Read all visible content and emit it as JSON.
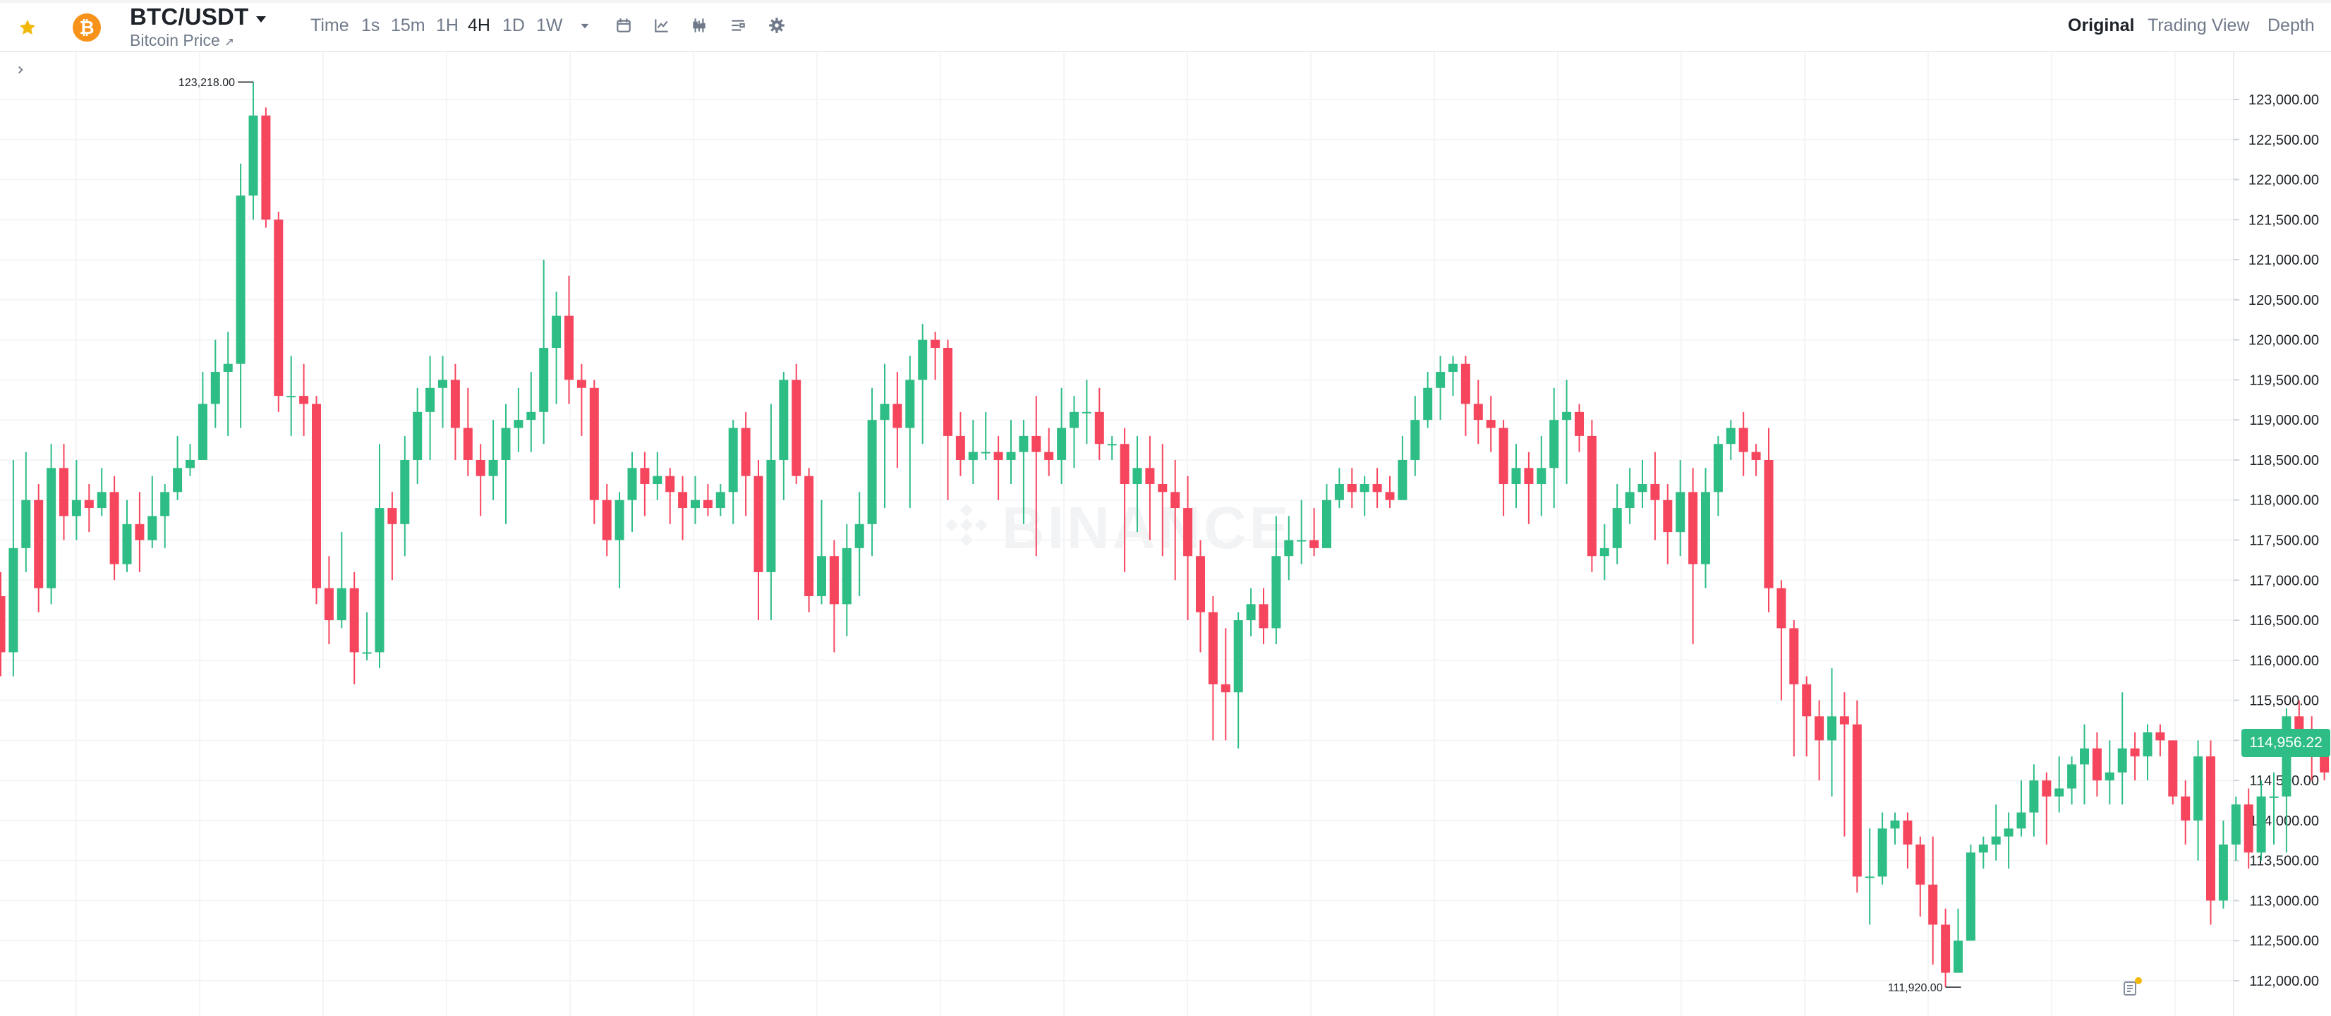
{
  "toolbar": {
    "pair": "BTC/USDT",
    "subtitle": "Bitcoin Price",
    "subtitle_link_icon": "external-link-arrow",
    "timeframes": [
      "Time",
      "1s",
      "15m",
      "1H",
      "4H",
      "1D",
      "1W"
    ],
    "active_timeframe": "4H",
    "tools": [
      "dropdown-caret-icon",
      "calendar-icon",
      "indicator-chart-icon",
      "candle-type-icon",
      "layout-settings-icon",
      "gear-icon"
    ],
    "views": [
      "Original",
      "Trading View",
      "Depth"
    ],
    "active_view": "Original"
  },
  "colors": {
    "up": "#2ebd85",
    "down": "#f6465d",
    "star": "#f0b90b",
    "coin": "#f7931a"
  },
  "watermark": "BINANCE",
  "chart_data": {
    "type": "candlestick",
    "y_ticks": [
      "123,000.00",
      "122,500.00",
      "122,000.00",
      "121,500.00",
      "121,000.00",
      "120,500.00",
      "120,000.00",
      "119,500.00",
      "119,000.00",
      "118,500.00",
      "118,000.00",
      "117,500.00",
      "117,000.00",
      "116,500.00",
      "116,000.00",
      "115,500.00",
      "115,000.00",
      "114,500.00",
      "114,000.00",
      "113,500.00",
      "113,000.00",
      "112,500.00",
      "112,000.00"
    ],
    "ylim": [
      111750,
      123400
    ],
    "current_price": "114,956.22",
    "high_label": "123,218.00",
    "low_label": "111,920.00",
    "candles": [
      [
        116800,
        116100,
        117100,
        115800
      ],
      [
        116100,
        117400,
        118500,
        115800
      ],
      [
        117400,
        118000,
        118600,
        117100
      ],
      [
        118000,
        116900,
        118200,
        116600
      ],
      [
        116900,
        118400,
        118700,
        116700
      ],
      [
        118400,
        117800,
        118700,
        117500
      ],
      [
        117800,
        118000,
        118500,
        117500
      ],
      [
        118000,
        117900,
        118200,
        117600
      ],
      [
        117900,
        118100,
        118400,
        117800
      ],
      [
        118100,
        117200,
        118300,
        117000
      ],
      [
        117200,
        117700,
        118000,
        117100
      ],
      [
        117700,
        117500,
        118100,
        117100
      ],
      [
        117500,
        117800,
        118300,
        117400
      ],
      [
        117800,
        118100,
        118200,
        117400
      ],
      [
        118100,
        118400,
        118800,
        118000
      ],
      [
        118400,
        118500,
        118700,
        118300
      ],
      [
        118500,
        119200,
        119600,
        118500
      ],
      [
        119200,
        119600,
        120000,
        118900
      ],
      [
        119600,
        119700,
        120100,
        118800
      ],
      [
        119700,
        121800,
        122200,
        118900
      ],
      [
        121800,
        122800,
        123218,
        121500
      ],
      [
        122800,
        121500,
        122900,
        121400
      ],
      [
        121500,
        119300,
        121600,
        119100
      ],
      [
        119300,
        119300,
        119800,
        118800
      ],
      [
        119300,
        119200,
        119700,
        118800
      ],
      [
        119200,
        116900,
        119300,
        116700
      ],
      [
        116900,
        116500,
        117300,
        116200
      ],
      [
        116500,
        116900,
        117600,
        116400
      ],
      [
        116900,
        116100,
        117100,
        115700
      ],
      [
        116100,
        116100,
        116600,
        116000
      ],
      [
        116100,
        117900,
        118700,
        115900
      ],
      [
        117900,
        117700,
        118100,
        117000
      ],
      [
        117700,
        118500,
        118800,
        117300
      ],
      [
        118500,
        119100,
        119400,
        118200
      ],
      [
        119100,
        119400,
        119800,
        118500
      ],
      [
        119400,
        119500,
        119800,
        118900
      ],
      [
        119500,
        118900,
        119700,
        118500
      ],
      [
        118900,
        118500,
        119400,
        118300
      ],
      [
        118500,
        118300,
        118700,
        117800
      ],
      [
        118300,
        118500,
        119000,
        118000
      ],
      [
        118500,
        118900,
        119200,
        117700
      ],
      [
        118900,
        119000,
        119400,
        118600
      ],
      [
        119000,
        119100,
        119600,
        118600
      ],
      [
        119100,
        119900,
        121000,
        118700
      ],
      [
        119900,
        120300,
        120600,
        119200
      ],
      [
        120300,
        119500,
        120800,
        119200
      ],
      [
        119500,
        119400,
        119700,
        118800
      ],
      [
        119400,
        118000,
        119500,
        117700
      ],
      [
        118000,
        117500,
        118200,
        117300
      ],
      [
        117500,
        118000,
        118100,
        116900
      ],
      [
        118000,
        118400,
        118600,
        117600
      ],
      [
        118400,
        118200,
        118600,
        117800
      ],
      [
        118200,
        118300,
        118600,
        118000
      ],
      [
        118300,
        118100,
        118400,
        117700
      ],
      [
        118100,
        117900,
        118300,
        117500
      ],
      [
        117900,
        118000,
        118300,
        117700
      ],
      [
        118000,
        117900,
        118200,
        117800
      ],
      [
        117900,
        118100,
        118200,
        117800
      ],
      [
        118100,
        118900,
        119000,
        117700
      ],
      [
        118900,
        118300,
        119100,
        117800
      ],
      [
        118300,
        117100,
        118500,
        116500
      ],
      [
        117100,
        118500,
        119200,
        116500
      ],
      [
        118500,
        119500,
        119600,
        118000
      ],
      [
        119500,
        118300,
        119700,
        118200
      ],
      [
        118300,
        116800,
        118400,
        116600
      ],
      [
        116800,
        117300,
        118000,
        116700
      ],
      [
        117300,
        116700,
        117500,
        116100
      ],
      [
        116700,
        117400,
        117700,
        116300
      ],
      [
        117400,
        117700,
        118100,
        116800
      ],
      [
        117700,
        119000,
        119400,
        117300
      ],
      [
        119000,
        119200,
        119700,
        117900
      ],
      [
        119200,
        118900,
        119600,
        118400
      ],
      [
        118900,
        119500,
        119800,
        117900
      ],
      [
        119500,
        120000,
        120200,
        118700
      ],
      [
        120000,
        119900,
        120100,
        119500
      ],
      [
        119900,
        118800,
        120000,
        118000
      ],
      [
        118800,
        118500,
        119100,
        118300
      ],
      [
        118500,
        118600,
        119000,
        118200
      ],
      [
        118600,
        118600,
        119100,
        118500
      ],
      [
        118600,
        118500,
        118800,
        118000
      ],
      [
        118500,
        118600,
        119000,
        118200
      ],
      [
        118600,
        118800,
        119000,
        117700
      ],
      [
        118800,
        118600,
        119300,
        117300
      ],
      [
        118600,
        118500,
        118900,
        118300
      ],
      [
        118500,
        118900,
        119400,
        118200
      ],
      [
        118900,
        119100,
        119300,
        118400
      ],
      [
        119100,
        119100,
        119500,
        118700
      ],
      [
        119100,
        118700,
        119400,
        118500
      ],
      [
        118700,
        118700,
        118800,
        118500
      ],
      [
        118700,
        118200,
        118900,
        117100
      ],
      [
        118200,
        118400,
        118800,
        117600
      ],
      [
        118400,
        118200,
        118800,
        117500
      ],
      [
        118200,
        118100,
        118700,
        117300
      ],
      [
        118100,
        117900,
        118500,
        117000
      ],
      [
        117900,
        117300,
        118300,
        116500
      ],
      [
        117300,
        116600,
        117500,
        116100
      ],
      [
        116600,
        115700,
        116800,
        115000
      ],
      [
        115700,
        115600,
        116400,
        115000
      ],
      [
        115600,
        116500,
        116600,
        114900
      ],
      [
        116500,
        116700,
        116900,
        116300
      ],
      [
        116700,
        116400,
        116900,
        116200
      ],
      [
        116400,
        117300,
        117800,
        116200
      ],
      [
        117300,
        117500,
        117800,
        117000
      ],
      [
        117500,
        117500,
        118000,
        117200
      ],
      [
        117500,
        117400,
        117900,
        117300
      ],
      [
        117400,
        118000,
        118200,
        117400
      ],
      [
        118000,
        118200,
        118400,
        117900
      ],
      [
        118200,
        118100,
        118400,
        117900
      ],
      [
        118100,
        118200,
        118300,
        117800
      ],
      [
        118200,
        118100,
        118400,
        117900
      ],
      [
        118100,
        118000,
        118300,
        117900
      ],
      [
        118000,
        118500,
        118800,
        118000
      ],
      [
        118500,
        119000,
        119300,
        118300
      ],
      [
        119000,
        119400,
        119600,
        118900
      ],
      [
        119400,
        119600,
        119800,
        119000
      ],
      [
        119600,
        119700,
        119800,
        119300
      ],
      [
        119700,
        119200,
        119800,
        118800
      ],
      [
        119200,
        119000,
        119500,
        118700
      ],
      [
        119000,
        118900,
        119300,
        118600
      ],
      [
        118900,
        118200,
        119000,
        117800
      ],
      [
        118200,
        118400,
        118700,
        117900
      ],
      [
        118400,
        118200,
        118600,
        117700
      ],
      [
        118200,
        118400,
        118800,
        117800
      ],
      [
        118400,
        119000,
        119400,
        117900
      ],
      [
        119000,
        119100,
        119500,
        118200
      ],
      [
        119100,
        118800,
        119200,
        118600
      ],
      [
        118800,
        117300,
        119000,
        117100
      ],
      [
        117300,
        117400,
        117700,
        117000
      ],
      [
        117400,
        117900,
        118200,
        117200
      ],
      [
        117900,
        118100,
        118400,
        117700
      ],
      [
        118100,
        118200,
        118500,
        117900
      ],
      [
        118200,
        118000,
        118600,
        117500
      ],
      [
        118000,
        117600,
        118200,
        117200
      ],
      [
        117600,
        118100,
        118500,
        117300
      ],
      [
        118100,
        117200,
        118400,
        116200
      ],
      [
        117200,
        118100,
        118400,
        116900
      ],
      [
        118100,
        118700,
        118800,
        117800
      ],
      [
        118700,
        118900,
        119000,
        118500
      ],
      [
        118900,
        118600,
        119100,
        118300
      ],
      [
        118600,
        118500,
        118700,
        118300
      ],
      [
        118500,
        116900,
        118900,
        116600
      ],
      [
        116900,
        116400,
        117000,
        115500
      ],
      [
        116400,
        115700,
        116500,
        114800
      ],
      [
        115700,
        115300,
        115800,
        114800
      ],
      [
        115300,
        115000,
        115500,
        114500
      ],
      [
        115000,
        115300,
        115900,
        114300
      ],
      [
        115300,
        115200,
        115600,
        113800
      ],
      [
        115200,
        113300,
        115500,
        113100
      ],
      [
        113300,
        113300,
        113900,
        112700
      ],
      [
        113300,
        113900,
        114100,
        113200
      ],
      [
        113900,
        114000,
        114100,
        113700
      ],
      [
        114000,
        113700,
        114100,
        113400
      ],
      [
        113700,
        113200,
        113800,
        112800
      ],
      [
        113200,
        112700,
        113800,
        112200
      ],
      [
        112700,
        112100,
        112900,
        111920
      ],
      [
        112100,
        112500,
        112900,
        112100
      ],
      [
        112500,
        113600,
        113700,
        112500
      ],
      [
        113600,
        113700,
        113800,
        113400
      ],
      [
        113700,
        113800,
        114200,
        113500
      ],
      [
        113800,
        113900,
        114100,
        113400
      ],
      [
        113900,
        114100,
        114500,
        113800
      ],
      [
        114100,
        114500,
        114700,
        113800
      ],
      [
        114500,
        114300,
        114600,
        113700
      ],
      [
        114300,
        114400,
        114800,
        114100
      ],
      [
        114400,
        114700,
        114800,
        114200
      ],
      [
        114700,
        114900,
        115200,
        114200
      ],
      [
        114900,
        114500,
        115100,
        114300
      ],
      [
        114500,
        114600,
        115000,
        114200
      ],
      [
        114600,
        114900,
        115600,
        114200
      ],
      [
        114900,
        114800,
        115100,
        114500
      ],
      [
        114800,
        115100,
        115200,
        114500
      ],
      [
        115100,
        115000,
        115200,
        114800
      ],
      [
        115000,
        114300,
        115000,
        114200
      ],
      [
        114300,
        114000,
        114500,
        113700
      ],
      [
        114000,
        114800,
        115000,
        113500
      ],
      [
        114800,
        113000,
        115000,
        112700
      ],
      [
        113000,
        113700,
        114000,
        112900
      ],
      [
        113700,
        114200,
        114300,
        113500
      ],
      [
        114200,
        113600,
        114400,
        113400
      ],
      [
        113600,
        114300,
        114500,
        113500
      ],
      [
        114300,
        114300,
        114600,
        113700
      ],
      [
        114300,
        115300,
        115400,
        113600
      ],
      [
        115300,
        115100,
        115500,
        114900
      ],
      [
        115100,
        114800,
        115300,
        114500
      ],
      [
        114800,
        114600,
        115100,
        114500
      ],
      [
        114600,
        114600,
        114800,
        114300
      ],
      [
        114600,
        114900,
        115000,
        114700
      ],
      [
        114900,
        114956,
        115200,
        114600
      ]
    ]
  }
}
